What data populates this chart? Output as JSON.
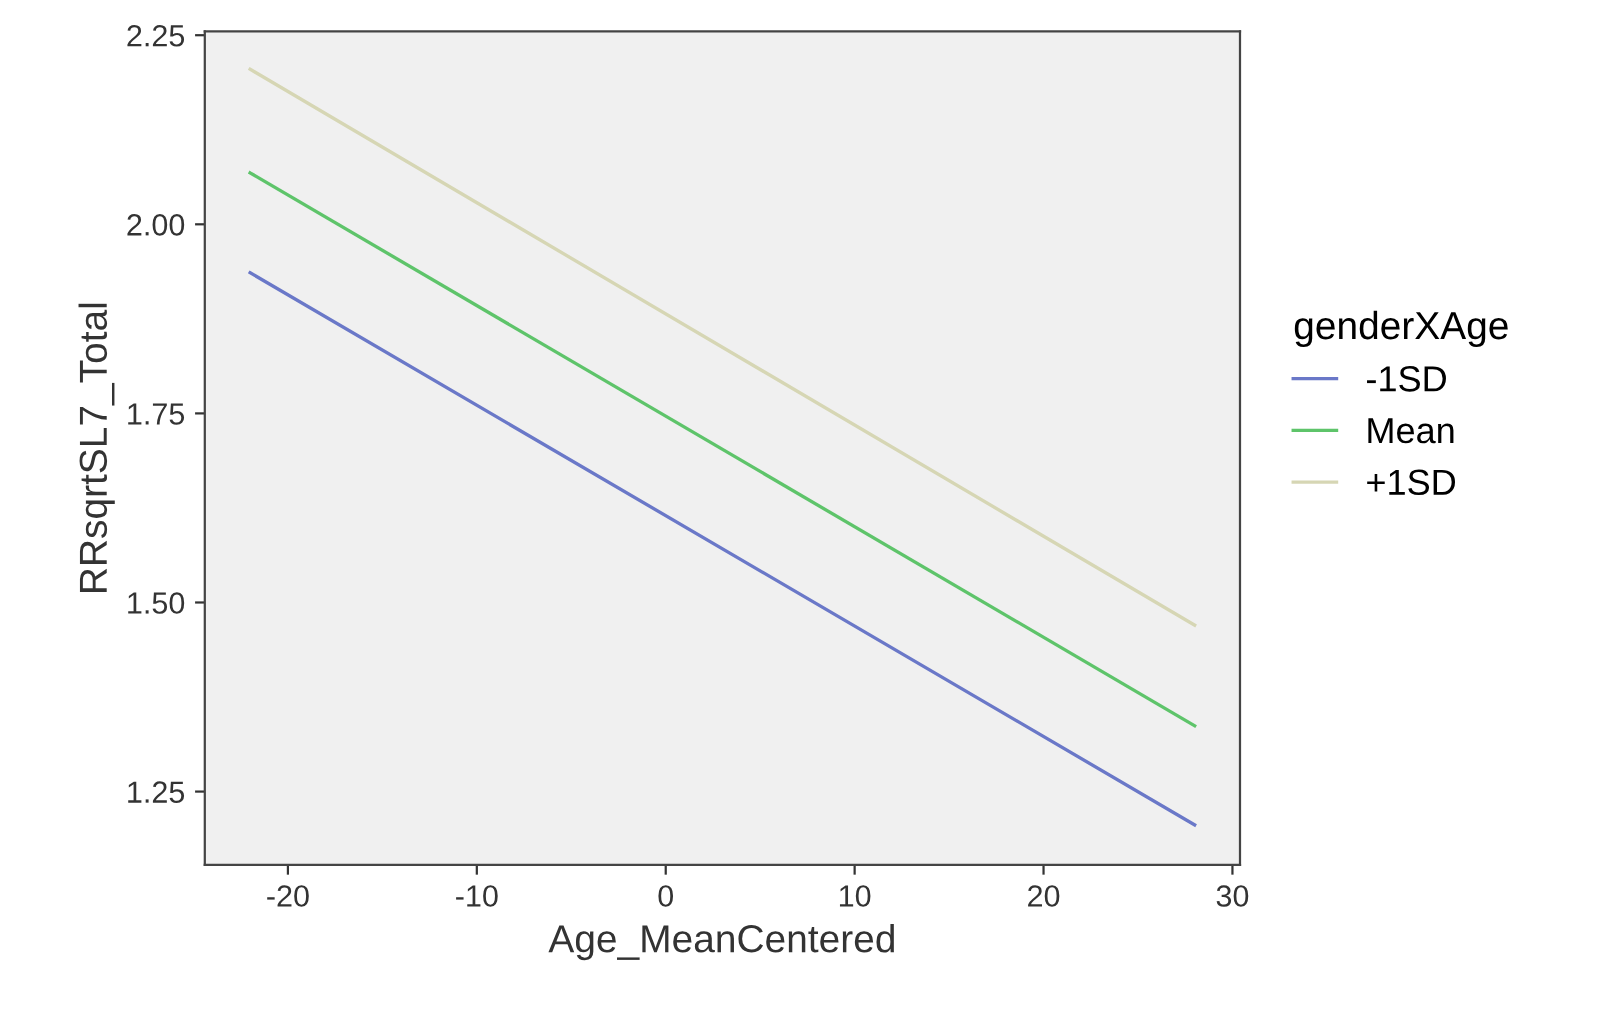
{
  "chart_data": {
    "type": "line",
    "xlabel": "Age_MeanCentered",
    "ylabel": "RRsqrtSL7_Total",
    "legend_title": "genderXAge",
    "x": [
      -22,
      28
    ],
    "series": [
      {
        "name": "-1SD",
        "color": "#6a78c8",
        "values": [
          1.936,
          1.206
        ]
      },
      {
        "name": "Mean",
        "color": "#5ec46a",
        "values": [
          2.068,
          1.337
        ]
      },
      {
        "name": "+1SD",
        "color": "#d6d6b4",
        "values": [
          2.205,
          1.47
        ]
      }
    ],
    "xlim": [
      -24.4,
      30.4
    ],
    "ylim": [
      1.153,
      2.255
    ],
    "xticks": [
      -20,
      -10,
      0,
      10,
      20,
      30
    ],
    "yticks": [
      {
        "value": 1.25,
        "label": "1.25"
      },
      {
        "value": 1.5,
        "label": "1.50"
      },
      {
        "value": 1.75,
        "label": "1.75"
      },
      {
        "value": 2.0,
        "label": "2.00"
      },
      {
        "value": 2.25,
        "label": "2.25"
      }
    ],
    "grid": false,
    "legend": "right",
    "marker": "none",
    "line_style": "solid"
  }
}
